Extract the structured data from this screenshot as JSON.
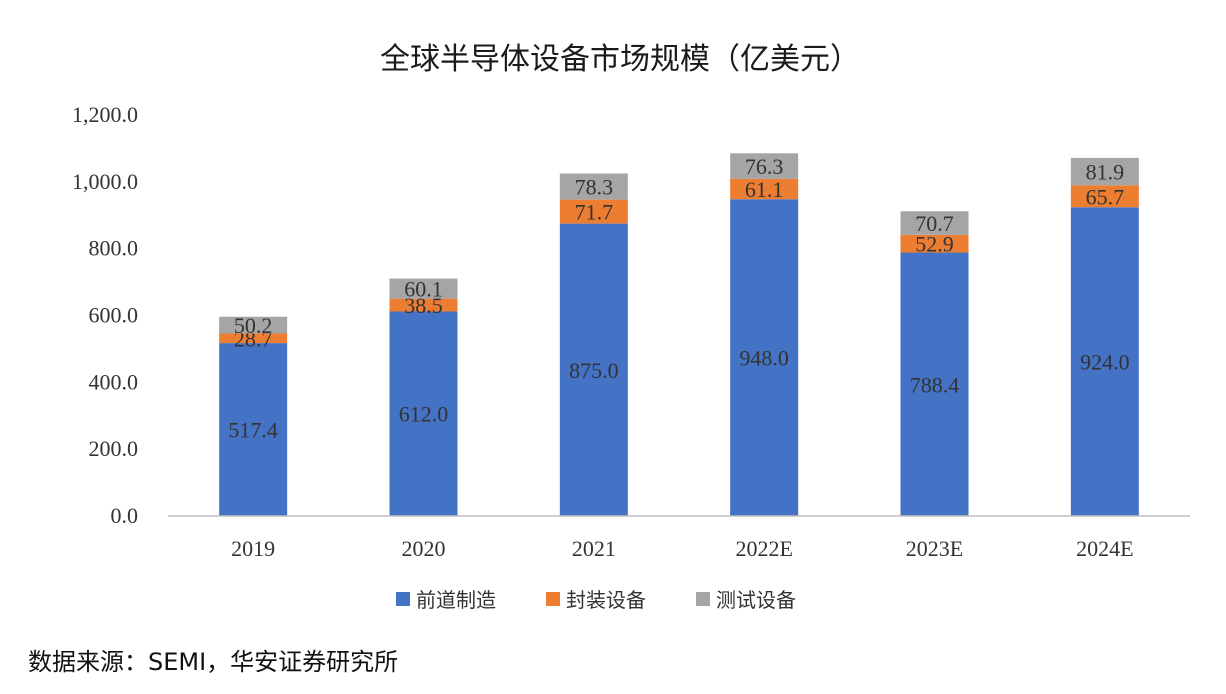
{
  "chart_data": {
    "type": "bar",
    "stacked": true,
    "title": "全球半导体设备市场规模（亿美元）",
    "categories": [
      "2019",
      "2020",
      "2021",
      "2022E",
      "2023E",
      "2024E"
    ],
    "series": [
      {
        "name": "前道制造",
        "color": "#4472C4",
        "values": [
          517.4,
          612.0,
          875.0,
          948.0,
          788.4,
          924.0
        ]
      },
      {
        "name": "封装设备",
        "color": "#ED7D31",
        "values": [
          28.7,
          38.5,
          71.7,
          61.1,
          52.9,
          65.7
        ]
      },
      {
        "name": "测试设备",
        "color": "#A5A5A5",
        "values": [
          50.2,
          60.1,
          78.3,
          76.3,
          70.7,
          81.9
        ]
      }
    ],
    "ylim": [
      0,
      1200
    ],
    "yticks": [
      "0.0",
      "200.0",
      "400.0",
      "600.0",
      "800.0",
      "1,000.0",
      "1,200.0"
    ],
    "grid": false,
    "legend_position": "bottom"
  },
  "source_text": "数据来源：SEMI，华安证券研究所"
}
